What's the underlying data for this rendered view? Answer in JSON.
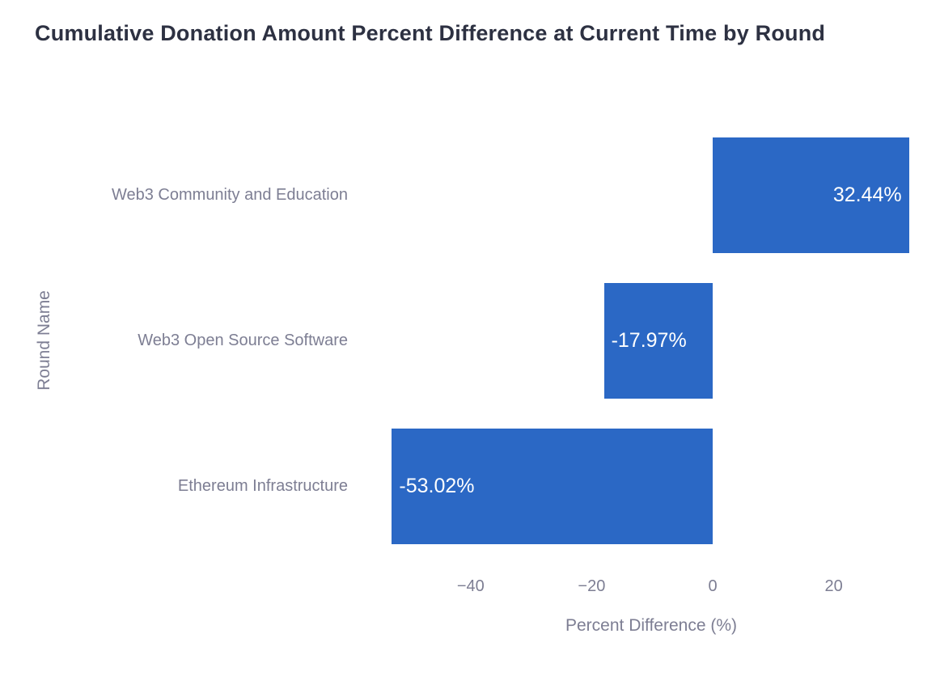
{
  "title": "Cumulative Donation Amount Percent Difference at Current Time by Round",
  "chart_data": {
    "type": "bar",
    "orientation": "horizontal",
    "title": "Cumulative Donation Amount Percent Difference at Current Time by Round",
    "categories": [
      "Web3 Community and Education",
      "Web3 Open Source Software",
      "Ethereum Infrastructure"
    ],
    "values": [
      32.44,
      -17.97,
      -53.02
    ],
    "value_labels": [
      "32.44%",
      "-17.97%",
      "-53.02%"
    ],
    "xlabel": "Percent Difference (%)",
    "ylabel": "Round Name",
    "x_ticks": [
      "−40",
      "−20",
      "0",
      "20"
    ],
    "x_tick_values": [
      -40,
      -20,
      0,
      20
    ],
    "xlim": [
      -55,
      34
    ],
    "grid": false,
    "legend": "none",
    "colors": {
      "bar": "#2b68c5",
      "title": "#2d3142",
      "axis_text": "#7d7e93",
      "value_text": "#ffffff",
      "background": "#ffffff"
    }
  }
}
